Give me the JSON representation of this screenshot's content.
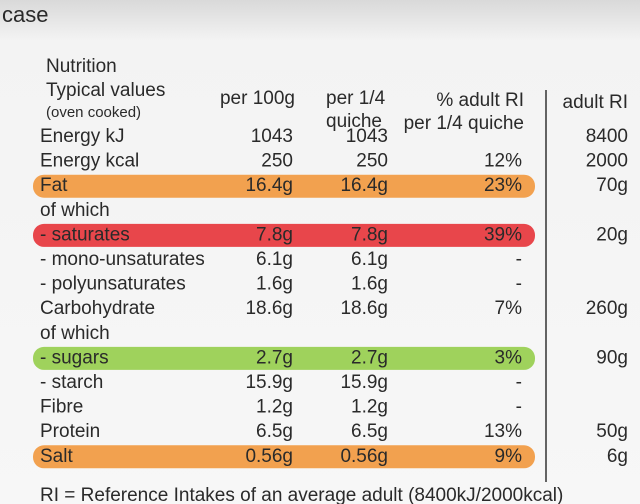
{
  "label": {
    "heading": "case",
    "title": "Nutrition",
    "columns": {
      "typical": "Typical values",
      "typical_note": "(oven cooked)",
      "per100": "per 100g",
      "per_quarter": [
        "per 1/4",
        "quiche"
      ],
      "pct_ri": [
        "% adult RI",
        "per 1/4 quiche"
      ],
      "adult_ri": "adult RI"
    },
    "rows": [
      {
        "cells": [
          "Energy kJ",
          "1043",
          "1043",
          null,
          "8400"
        ]
      },
      {
        "cells": [
          "Energy kcal",
          "250",
          "250",
          "12%",
          "2000"
        ]
      },
      {
        "cells": [
          "Fat",
          "16.4g",
          "16.4g",
          "23%",
          "70g"
        ],
        "highlight": "#f2a14f"
      },
      {
        "cells": [
          "of which",
          null,
          null,
          null,
          null
        ]
      },
      {
        "cells": [
          "- saturates",
          "7.8g",
          "7.8g",
          "39%",
          "20g"
        ],
        "highlight": "#e8464b"
      },
      {
        "cells": [
          "- mono-unsaturates",
          "6.1g",
          "6.1g",
          "-",
          null
        ]
      },
      {
        "cells": [
          "- polyunsaturates",
          "1.6g",
          "1.6g",
          "-",
          null
        ]
      },
      {
        "cells": [
          "Carbohydrate",
          "18.6g",
          "18.6g",
          "7%",
          "260g"
        ]
      },
      {
        "cells": [
          "of which",
          null,
          null,
          null,
          null
        ]
      },
      {
        "cells": [
          "- sugars",
          "2.7g",
          "2.7g",
          "3%",
          "90g"
        ],
        "highlight": "#9fd25c"
      },
      {
        "cells": [
          "- starch",
          "15.9g",
          "15.9g",
          "-",
          null
        ]
      },
      {
        "cells": [
          "Fibre",
          "1.2g",
          "1.2g",
          "-",
          null
        ]
      },
      {
        "cells": [
          "Protein",
          "6.5g",
          "6.5g",
          "13%",
          "50g"
        ]
      },
      {
        "cells": [
          "Salt",
          "0.56g",
          "0.56g",
          "9%",
          "6g"
        ],
        "highlight": "#f2a14f"
      }
    ],
    "footer": "RI = Reference Intakes of an average adult (8400kJ/2000kcal)"
  }
}
